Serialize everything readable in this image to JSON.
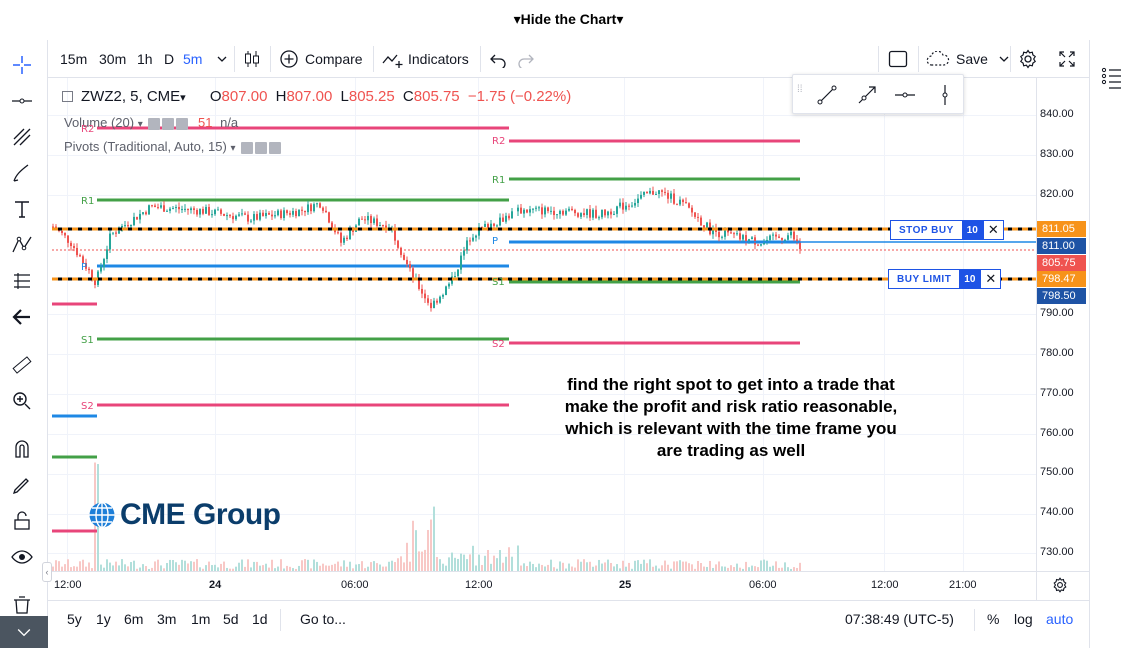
{
  "top": {
    "hide_chart_label": "Hide the Chart"
  },
  "header": {
    "intervals": [
      "15m",
      "30m",
      "1h",
      "D",
      "5m"
    ],
    "active_interval": "5m",
    "compare_label": "Compare",
    "indicators_label": "Indicators",
    "save_label": "Save"
  },
  "legend": {
    "symbol": "ZWZ2, 5, CME",
    "open_k": "O",
    "open_v": "807.00",
    "high_k": "H",
    "high_v": "807.00",
    "low_k": "L",
    "low_v": "805.25",
    "close_k": "C",
    "close_v": "805.75",
    "change": "−1.75 (−0.22%)",
    "volume_label": "Volume (20)",
    "volume_value": "51",
    "volume_na": "n/a",
    "pivots_label": "Pivots (Traditional, Auto, 15)"
  },
  "pivots": {
    "left": {
      "r2": "R2",
      "r1": "R1",
      "p": "P",
      "s1": "S1",
      "s2": "S2"
    },
    "right": {
      "r2": "R2",
      "r1": "R1",
      "p": "P",
      "s1": "S1",
      "s2": "S2"
    }
  },
  "price_axis": {
    "ticks": [
      "840.00",
      "830.00",
      "820.00",
      "790.00",
      "780.00",
      "770.00",
      "760.00",
      "750.00",
      "740.00",
      "730.00"
    ],
    "stop_buy_price": "811.05",
    "current_bid": "811.00",
    "last_price": "805.75",
    "buy_limit_price": "798.47",
    "buy_limit_bid": "798.50"
  },
  "time_axis": {
    "ticks": [
      "12:00",
      "24",
      "06:00",
      "12:00",
      "25",
      "06:00",
      "12:00",
      "21:00"
    ]
  },
  "orders": {
    "stop_buy": {
      "label": "STOP BUY",
      "qty": "10",
      "close": "✕"
    },
    "buy_limit": {
      "label": "BUY LIMIT",
      "qty": "10",
      "close": "✕"
    }
  },
  "annotation": {
    "line1": "find the right spot to get into a trade that",
    "line2": "make the profit and risk ratio reasonable,",
    "line3": "which is relevant with the time frame you",
    "line4": "are trading as well"
  },
  "watermark": {
    "text": "CME Group"
  },
  "bottom": {
    "ranges": [
      "5y",
      "1y",
      "6m",
      "3m",
      "1m",
      "5d",
      "1d"
    ],
    "goto_label": "Go to...",
    "clock": "07:38:49 (UTC-5)",
    "percent_label": "%",
    "log_label": "log",
    "auto_label": "auto"
  },
  "colors": {
    "r_line": "#e8457a",
    "g_line": "#43a047",
    "p_line": "#1e88e5",
    "order_line": "#f7931a",
    "up_candle": "#26a69a",
    "down_candle": "#ef5350",
    "accent": "#2962ff"
  }
}
